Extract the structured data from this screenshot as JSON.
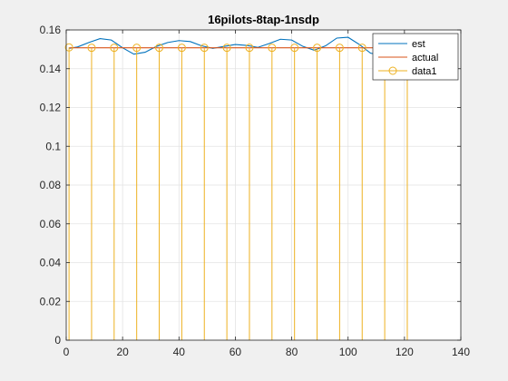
{
  "chart_data": {
    "type": "line",
    "title": "16pilots-8tap-1nsdp",
    "xlabel": "",
    "ylabel": "",
    "xlim": [
      0,
      140
    ],
    "ylim": [
      0,
      0.16
    ],
    "xticks": [
      0,
      20,
      40,
      60,
      80,
      100,
      120,
      140
    ],
    "yticks": [
      0,
      0.02,
      0.04,
      0.06,
      0.08,
      0.1,
      0.12,
      0.14,
      0.16
    ],
    "ytick_labels": [
      "0",
      "0.02",
      "0.04",
      "0.06",
      "0.08",
      "0.1",
      "0.12",
      "0.14",
      "0.16"
    ],
    "grid": true,
    "legend_position": "top-right",
    "series": [
      {
        "name": "est",
        "style": "line",
        "color": "#0072BD",
        "x": [
          1,
          4,
          8,
          12,
          16,
          20,
          24,
          28,
          32,
          36,
          40,
          44,
          48,
          52,
          56,
          60,
          64,
          68,
          72,
          76,
          80,
          84,
          88,
          92,
          96,
          100,
          104,
          108,
          112,
          116,
          120,
          124,
          128
        ],
        "y": [
          0.1505,
          0.1512,
          0.1535,
          0.1555,
          0.1548,
          0.1508,
          0.1475,
          0.1485,
          0.1515,
          0.1535,
          0.1545,
          0.154,
          0.1518,
          0.1505,
          0.1515,
          0.1525,
          0.152,
          0.151,
          0.153,
          0.1552,
          0.1548,
          0.1515,
          0.1495,
          0.1518,
          0.1558,
          0.1562,
          0.1525,
          0.148,
          0.147,
          0.1495,
          0.153,
          0.1545,
          0.153
        ]
      },
      {
        "name": "actual",
        "style": "line",
        "color": "#D95319",
        "x": [
          1,
          128
        ],
        "y": [
          0.1508,
          0.1508
        ]
      },
      {
        "name": "data1",
        "style": "stem",
        "color": "#EDB120",
        "x": [
          1,
          9,
          17,
          25,
          33,
          41,
          49,
          57,
          65,
          73,
          81,
          89,
          97,
          105,
          113,
          121
        ],
        "y": [
          0.151,
          0.1508,
          0.1508,
          0.1508,
          0.1508,
          0.1508,
          0.1508,
          0.1508,
          0.1508,
          0.1508,
          0.1508,
          0.1508,
          0.1508,
          0.1508,
          0.1508,
          0.1508
        ]
      }
    ]
  }
}
